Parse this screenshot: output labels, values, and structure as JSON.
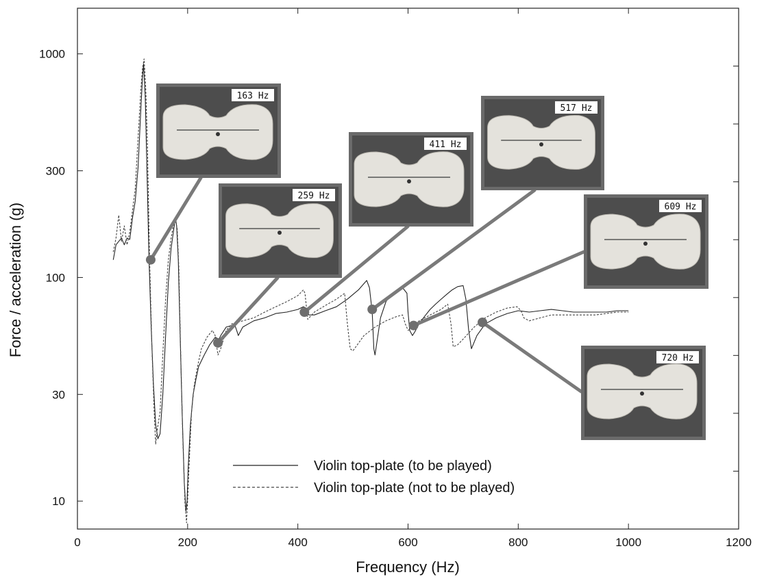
{
  "chart_data": {
    "type": "line",
    "xlabel": "Frequency (Hz)",
    "ylabel": "Force / acceleration  (g)",
    "xlim": [
      0,
      1200
    ],
    "ylim": [
      7.5,
      1600
    ],
    "y_scale": "log",
    "grid": false,
    "legend_position": "bottom-center",
    "x_ticks": [
      0,
      200,
      400,
      600,
      800,
      1000,
      1200
    ],
    "y_ticks": [
      10,
      30,
      100,
      300,
      1000
    ],
    "y_tick_labels": [
      "10",
      "30",
      "100",
      "300",
      "1000"
    ],
    "series": [
      {
        "name": "Violin top-plate (to be played)",
        "style": "solid",
        "color": "#222222",
        "x": [
          65,
          70,
          75,
          80,
          85,
          90,
          95,
          100,
          105,
          110,
          115,
          118,
          120,
          123,
          126,
          130,
          134,
          138,
          142,
          146,
          150,
          155,
          160,
          165,
          170,
          175,
          178,
          180,
          183,
          186,
          190,
          194,
          197,
          199,
          201,
          205,
          210,
          215,
          220,
          230,
          240,
          250,
          257,
          260,
          270,
          280,
          285,
          290,
          292,
          300,
          320,
          340,
          360,
          380,
          400,
          410,
          415,
          420,
          430,
          450,
          470,
          490,
          510,
          525,
          530,
          535,
          538,
          540,
          550,
          560,
          570,
          580,
          590,
          598,
          600,
          603,
          608,
          612,
          620,
          630,
          640,
          650,
          660,
          670,
          680,
          690,
          700,
          705,
          710,
          715,
          725,
          740,
          760,
          780,
          800,
          820,
          840,
          860,
          880,
          900,
          920,
          940,
          960,
          980,
          1000
        ],
        "y": [
          120,
          140,
          145,
          150,
          140,
          150,
          148,
          185,
          220,
          310,
          560,
          780,
          900,
          650,
          320,
          120,
          58,
          33,
          22,
          19,
          20,
          30,
          55,
          95,
          135,
          165,
          185,
          170,
          120,
          60,
          25,
          12,
          9,
          10,
          14,
          22,
          30,
          35,
          40,
          45,
          50,
          54,
          53,
          55,
          60,
          61,
          62,
          57,
          55,
          60,
          64,
          66,
          69,
          70,
          72,
          74,
          73,
          68,
          68,
          71,
          74,
          80,
          88,
          97,
          90,
          70,
          48,
          45,
          66,
          78,
          84,
          88,
          90,
          85,
          70,
          58,
          55,
          57,
          62,
          67,
          72,
          76,
          80,
          84,
          88,
          91,
          92,
          80,
          58,
          48,
          55,
          62,
          66,
          69,
          71,
          70,
          71,
          72,
          71,
          70,
          70,
          70,
          70,
          71,
          71
        ]
      },
      {
        "name": "Violin top-plate (not to be played)",
        "style": "dashed",
        "color": "#444444",
        "x": [
          65,
          70,
          75,
          80,
          85,
          90,
          95,
          100,
          105,
          110,
          115,
          118,
          121,
          124,
          127,
          131,
          135,
          139,
          142,
          145,
          150,
          155,
          160,
          165,
          170,
          175,
          178,
          181,
          184,
          187,
          191,
          195,
          198,
          200,
          203,
          207,
          212,
          218,
          225,
          235,
          245,
          250,
          255,
          260,
          270,
          280,
          300,
          320,
          340,
          360,
          380,
          400,
          410,
          413,
          418,
          430,
          450,
          470,
          485,
          490,
          495,
          500,
          520,
          540,
          560,
          580,
          590,
          595,
          600,
          610,
          620,
          640,
          660,
          672,
          678,
          682,
          690,
          700,
          720,
          740,
          760,
          780,
          798,
          805,
          810,
          820,
          840,
          860,
          880,
          900,
          920,
          940,
          960,
          980,
          1000
        ],
        "y": [
          130,
          150,
          190,
          145,
          170,
          140,
          160,
          200,
          250,
          420,
          690,
          860,
          950,
          700,
          400,
          120,
          50,
          26,
          18,
          21,
          25,
          45,
          80,
          120,
          150,
          175,
          180,
          165,
          110,
          50,
          20,
          10,
          8,
          10,
          15,
          25,
          33,
          40,
          48,
          54,
          58,
          55,
          45,
          48,
          58,
          62,
          64,
          66,
          70,
          74,
          78,
          83,
          88,
          85,
          65,
          70,
          75,
          80,
          85,
          62,
          48,
          47,
          55,
          60,
          64,
          67,
          68,
          62,
          58,
          60,
          64,
          68,
          72,
          76,
          62,
          49,
          50,
          53,
          60,
          66,
          70,
          73,
          74,
          71,
          66,
          64,
          66,
          68,
          68,
          68,
          68,
          68,
          69,
          70,
          70
        ]
      }
    ],
    "annotations": [
      {
        "label": "163 Hz",
        "marker_x": 133,
        "marker_y": 120
      },
      {
        "label": "259 Hz",
        "marker_x": 255,
        "marker_y": 51
      },
      {
        "label": "411 Hz",
        "marker_x": 412,
        "marker_y": 70
      },
      {
        "label": "517 Hz",
        "marker_x": 535,
        "marker_y": 72
      },
      {
        "label": "609 Hz",
        "marker_x": 610,
        "marker_y": 61
      },
      {
        "label": "720 Hz",
        "marker_x": 735,
        "marker_y": 63
      }
    ],
    "colors": {
      "axis": "#222222",
      "connector": "#7a7a7a",
      "marker": "#6e6e6e",
      "photo_frame": "#6a6a6a",
      "photo_background": "#4d4d4d",
      "plate": "#e4e2dc"
    }
  }
}
